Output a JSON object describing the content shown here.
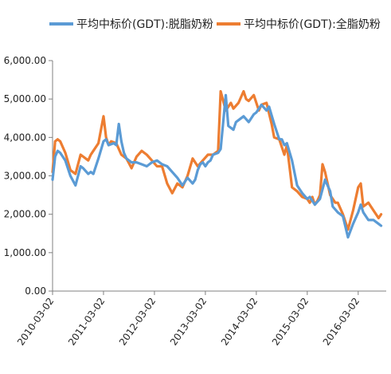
{
  "chart_data": {
    "type": "line",
    "title": "",
    "xlabel": "",
    "ylabel": "",
    "ylim": [
      0,
      6000
    ],
    "yticks": [
      "0.00",
      "1,000.00",
      "2,000.00",
      "3,000.00",
      "4,000.00",
      "5,000.00",
      "6,000.00"
    ],
    "x_tick_labels": [
      "2010-03-02",
      "2011-03-02",
      "2012-03-02",
      "2013-03-02",
      "2014-03-02",
      "2015-03-02",
      "2016-03-02"
    ],
    "grid": false,
    "legend_position": "top",
    "colors": {
      "skim": "#5b9bd5",
      "whole": "#ed7d31"
    },
    "series": [
      {
        "name": "平均中标价(GDT):脱脂奶粉",
        "x": [
          2010.0,
          2010.05,
          2010.1,
          2010.15,
          2010.25,
          2010.35,
          2010.45,
          2010.55,
          2010.6,
          2010.7,
          2010.75,
          2010.8,
          2010.9,
          2011.0,
          2011.05,
          2011.1,
          2011.2,
          2011.25,
          2011.3,
          2011.35,
          2011.4,
          2011.45,
          2011.55,
          2011.65,
          2011.75,
          2011.85,
          2011.95,
          2012.05,
          2012.15,
          2012.25,
          2012.35,
          2012.45,
          2012.55,
          2012.6,
          2012.65,
          2012.75,
          2012.8,
          2012.85,
          2012.9,
          2012.95,
          2013.0,
          2013.05,
          2013.1,
          2013.15,
          2013.25,
          2013.3,
          2013.4,
          2013.45,
          2013.55,
          2013.6,
          2013.65,
          2013.75,
          2013.85,
          2013.95,
          2014.0,
          2014.05,
          2014.1,
          2014.2,
          2014.25,
          2014.35,
          2014.45,
          2014.5,
          2014.55,
          2014.6,
          2014.7,
          2014.8,
          2014.85,
          2014.9,
          2015.0,
          2015.05,
          2015.1,
          2015.15,
          2015.25,
          2015.35,
          2015.45,
          2015.5,
          2015.6,
          2015.7,
          2015.8,
          2015.9,
          2016.0,
          2016.05,
          2016.1,
          2016.2,
          2016.3,
          2016.4,
          2016.45
        ],
        "values": [
          2900,
          3500,
          3650,
          3600,
          3400,
          3000,
          2750,
          3250,
          3200,
          3050,
          3100,
          3050,
          3450,
          3900,
          3950,
          3800,
          3850,
          3800,
          4350,
          3900,
          3600,
          3450,
          3350,
          3350,
          3300,
          3250,
          3350,
          3400,
          3300,
          3250,
          3100,
          2950,
          2750,
          2850,
          2950,
          2800,
          2900,
          3150,
          3300,
          3350,
          3250,
          3350,
          3400,
          3550,
          3600,
          3700,
          5100,
          4300,
          4200,
          4400,
          4450,
          4550,
          4400,
          4600,
          4650,
          4750,
          4850,
          4700,
          4800,
          4350,
          3950,
          3950,
          3800,
          3850,
          3400,
          2750,
          2650,
          2550,
          2400,
          2450,
          2350,
          2250,
          2400,
          2900,
          2600,
          2200,
          2050,
          1950,
          1400,
          1750,
          2050,
          2250,
          2050,
          1850,
          1850,
          1750,
          1700
        ]
      },
      {
        "name": "平均中标价(GDT):全脂奶粉",
        "x": [
          2010.0,
          2010.05,
          2010.1,
          2010.15,
          2010.25,
          2010.35,
          2010.45,
          2010.55,
          2010.6,
          2010.7,
          2010.75,
          2010.8,
          2010.9,
          2011.0,
          2011.05,
          2011.1,
          2011.15,
          2011.25,
          2011.35,
          2011.45,
          2011.55,
          2011.65,
          2011.75,
          2011.85,
          2011.95,
          2012.05,
          2012.15,
          2012.25,
          2012.35,
          2012.45,
          2012.55,
          2012.65,
          2012.75,
          2012.85,
          2012.95,
          2013.05,
          2013.15,
          2013.25,
          2013.3,
          2013.4,
          2013.45,
          2013.5,
          2013.55,
          2013.65,
          2013.75,
          2013.8,
          2013.85,
          2013.95,
          2014.05,
          2014.1,
          2014.2,
          2014.3,
          2014.35,
          2014.45,
          2014.55,
          2014.6,
          2014.7,
          2014.8,
          2014.9,
          2015.0,
          2015.05,
          2015.1,
          2015.15,
          2015.2,
          2015.25,
          2015.3,
          2015.35,
          2015.45,
          2015.55,
          2015.6,
          2015.7,
          2015.8,
          2015.9,
          2016.0,
          2016.05,
          2016.1,
          2016.2,
          2016.3,
          2016.4,
          2016.45
        ],
        "values": [
          3100,
          3900,
          3950,
          3900,
          3600,
          3150,
          3050,
          3550,
          3500,
          3400,
          3550,
          3650,
          3850,
          4550,
          4000,
          3800,
          3900,
          3850,
          3550,
          3450,
          3200,
          3500,
          3650,
          3550,
          3400,
          3250,
          3250,
          2800,
          2550,
          2800,
          2700,
          3000,
          3450,
          3250,
          3400,
          3550,
          3550,
          3650,
          5200,
          4700,
          4800,
          4900,
          4750,
          4900,
          5200,
          5000,
          4950,
          5100,
          4700,
          4850,
          4900,
          4350,
          4000,
          3950,
          3550,
          3800,
          2700,
          2600,
          2450,
          2400,
          2300,
          2450,
          2250,
          2350,
          2500,
          3300,
          3100,
          2500,
          2300,
          2300,
          2000,
          1600,
          2100,
          2700,
          2800,
          2200,
          2300,
          2100,
          1900,
          2000
        ]
      }
    ]
  }
}
